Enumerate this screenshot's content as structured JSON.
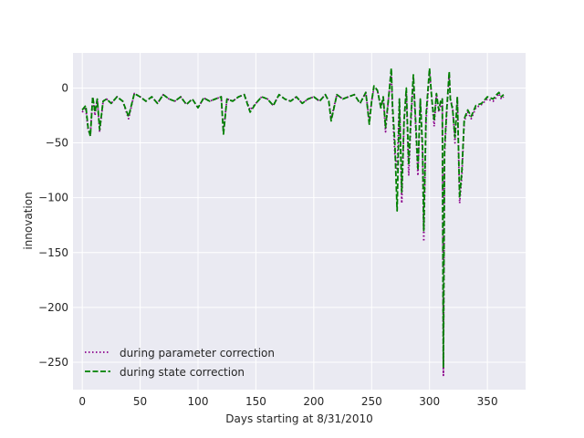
{
  "chart_data": {
    "type": "line",
    "xlabel": "Days starting at 8/31/2010",
    "ylabel": "innovation",
    "xlim": [
      -8,
      383
    ],
    "ylim": [
      -275,
      32
    ],
    "xticks": [
      0,
      50,
      100,
      150,
      200,
      250,
      300,
      350
    ],
    "yticks": [
      0,
      -50,
      -100,
      -150,
      -200,
      -250
    ],
    "xtick_labels": [
      "0",
      "50",
      "100",
      "150",
      "200",
      "250",
      "300",
      "350"
    ],
    "ytick_labels": [
      "0",
      "−50",
      "−100",
      "−150",
      "−200",
      "−250"
    ],
    "grid": true,
    "legend_position": "lower-left",
    "colors": {
      "background": "#eaeaf2",
      "grid": "#ffffff",
      "parameter": "#8b008b",
      "state": "#008000"
    },
    "series": [
      {
        "name": "during parameter correction",
        "style": "dotted",
        "x": [
          0,
          3,
          5,
          7,
          9,
          11,
          13,
          15,
          18,
          21,
          25,
          30,
          35,
          40,
          45,
          50,
          55,
          60,
          65,
          70,
          75,
          80,
          85,
          90,
          95,
          100,
          105,
          110,
          115,
          120,
          122,
          125,
          130,
          135,
          140,
          145,
          150,
          155,
          160,
          165,
          170,
          175,
          180,
          185,
          190,
          195,
          200,
          205,
          210,
          213,
          215,
          220,
          225,
          230,
          235,
          240,
          245,
          248,
          250,
          252,
          255,
          258,
          260,
          262,
          265,
          267,
          268,
          270,
          272,
          274,
          276,
          278,
          280,
          282,
          284,
          286,
          288,
          290,
          292,
          294,
          295,
          297,
          300,
          302,
          304,
          306,
          308,
          310,
          311,
          312,
          313,
          315,
          317,
          318,
          320,
          322,
          324,
          326,
          328,
          330,
          333,
          336,
          340,
          345,
          350,
          355,
          358,
          360,
          362,
          364
        ],
        "y": [
          -22,
          -18,
          -38,
          -43,
          -8,
          -25,
          -10,
          -40,
          -12,
          -10,
          -14,
          -8,
          -12,
          -28,
          -5,
          -8,
          -12,
          -8,
          -14,
          -6,
          -10,
          -12,
          -8,
          -15,
          -10,
          -18,
          -9,
          -12,
          -10,
          -8,
          -40,
          -10,
          -12,
          -8,
          -6,
          -20,
          -14,
          -8,
          -10,
          -16,
          -6,
          -10,
          -12,
          -8,
          -14,
          -10,
          -8,
          -12,
          -6,
          -12,
          -28,
          -6,
          -10,
          -8,
          -6,
          -14,
          -4,
          -30,
          -12,
          0,
          -2,
          -18,
          -8,
          -40,
          -5,
          15,
          -20,
          -60,
          -75,
          -10,
          -105,
          -30,
          -5,
          -80,
          -30,
          10,
          -35,
          -80,
          -10,
          -60,
          -140,
          -30,
          15,
          -10,
          -35,
          -5,
          -22,
          -15,
          -10,
          -262,
          -60,
          -20,
          12,
          -10,
          -18,
          -50,
          -8,
          -105,
          -80,
          -30,
          -22,
          -28,
          -18,
          -15,
          -10,
          -12,
          -8,
          -5,
          -10,
          -8
        ]
      },
      {
        "name": "during state correction",
        "style": "dashed",
        "x": [
          0,
          3,
          5,
          7,
          9,
          11,
          13,
          15,
          18,
          21,
          25,
          30,
          35,
          40,
          45,
          50,
          55,
          60,
          65,
          70,
          75,
          80,
          85,
          90,
          95,
          100,
          105,
          110,
          115,
          120,
          122,
          125,
          130,
          135,
          140,
          145,
          150,
          155,
          160,
          165,
          170,
          175,
          180,
          185,
          190,
          195,
          200,
          205,
          210,
          213,
          215,
          220,
          225,
          230,
          235,
          240,
          245,
          248,
          250,
          252,
          255,
          258,
          260,
          262,
          265,
          267,
          268,
          270,
          272,
          274,
          276,
          278,
          280,
          282,
          284,
          286,
          288,
          290,
          292,
          294,
          295,
          297,
          300,
          302,
          304,
          306,
          308,
          310,
          311,
          312,
          313,
          315,
          317,
          318,
          320,
          322,
          324,
          326,
          328,
          330,
          333,
          336,
          340,
          345,
          350,
          355,
          358,
          360,
          362,
          364
        ],
        "y": [
          -20,
          -16,
          -36,
          -44,
          -8,
          -22,
          -10,
          -38,
          -12,
          -10,
          -14,
          -8,
          -12,
          -26,
          -5,
          -8,
          -12,
          -8,
          -14,
          -6,
          -10,
          -12,
          -8,
          -15,
          -10,
          -18,
          -9,
          -12,
          -10,
          -8,
          -42,
          -10,
          -12,
          -8,
          -6,
          -22,
          -14,
          -8,
          -10,
          -16,
          -6,
          -10,
          -12,
          -8,
          -14,
          -10,
          -8,
          -12,
          -6,
          -12,
          -30,
          -6,
          -10,
          -8,
          -6,
          -14,
          -4,
          -33,
          -12,
          2,
          -2,
          -18,
          -8,
          -36,
          -5,
          18,
          -15,
          -50,
          -112,
          -10,
          -95,
          -30,
          0,
          -70,
          -25,
          12,
          -30,
          -75,
          -10,
          -55,
          -130,
          -25,
          18,
          -10,
          -30,
          -5,
          -20,
          -10,
          -10,
          -255,
          -55,
          -18,
          15,
          -10,
          -20,
          -45,
          -8,
          -100,
          -75,
          -28,
          -20,
          -26,
          -16,
          -14,
          -8,
          -10,
          -6,
          -4,
          -8,
          -6
        ]
      }
    ]
  }
}
